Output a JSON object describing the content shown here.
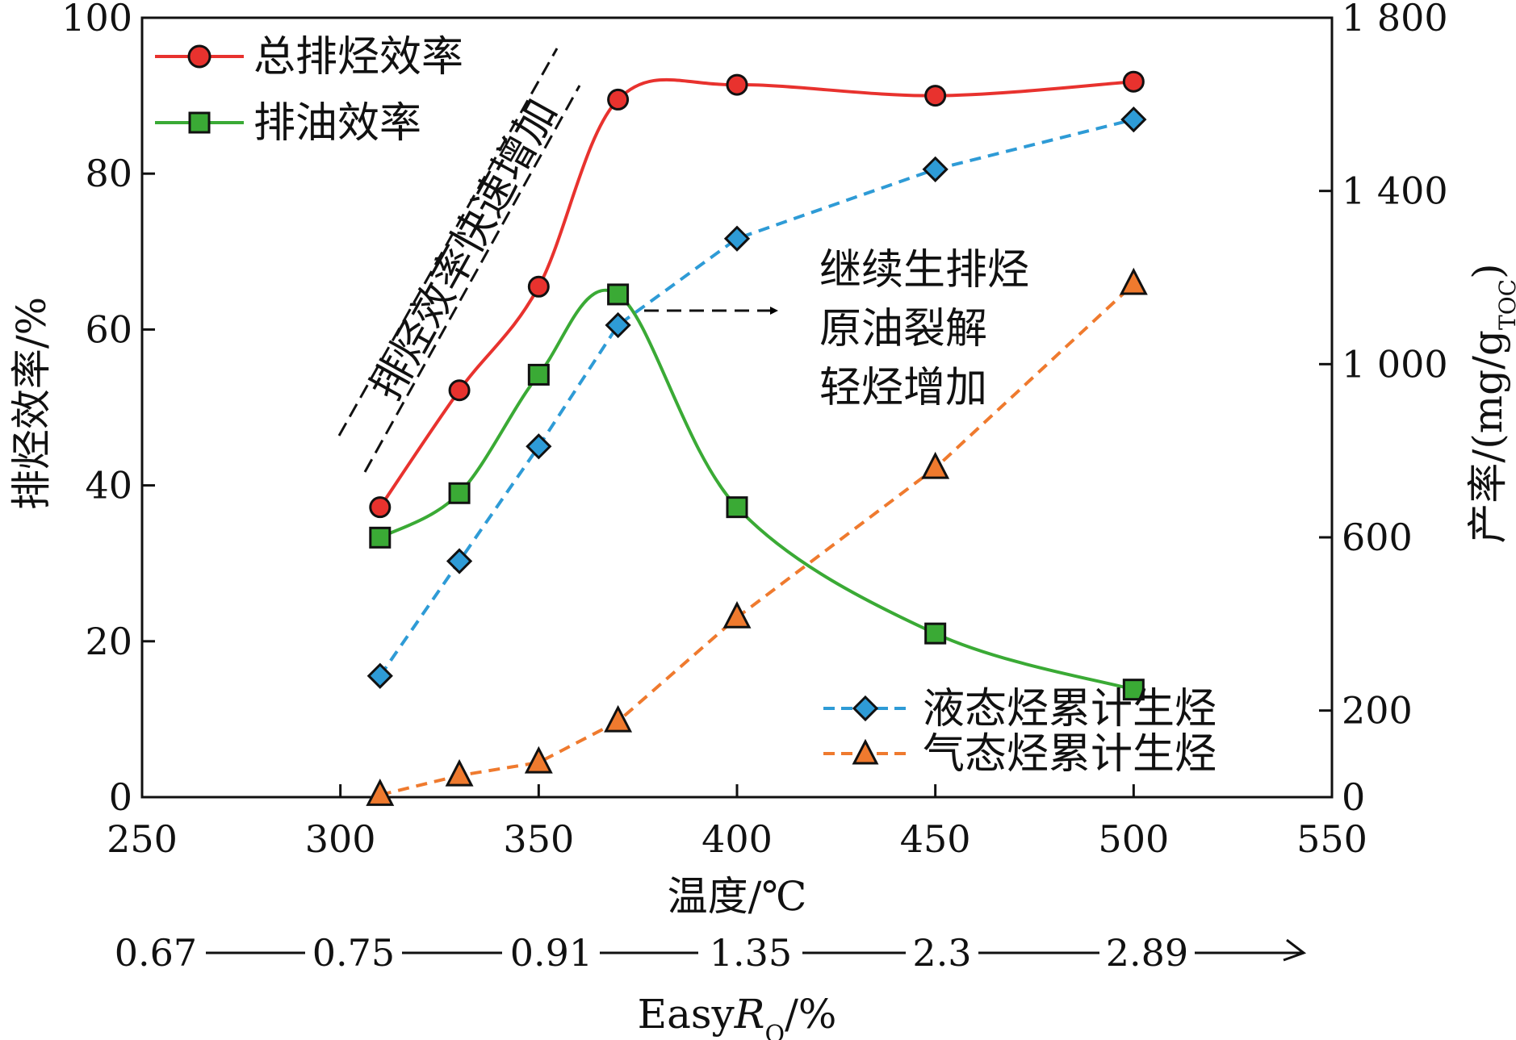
{
  "chart_data": {
    "type": "line",
    "x_axis": {
      "label": "温度/℃",
      "range": [
        250,
        550
      ],
      "ticks": [
        250,
        300,
        350,
        400,
        450,
        500,
        550
      ]
    },
    "y_left": {
      "label": "排烃效率/%",
      "range": [
        0,
        100
      ],
      "ticks": [
        0,
        20,
        40,
        60,
        80,
        100
      ]
    },
    "y_right": {
      "label_main": "产率/(mg/g",
      "label_sub": "TOC",
      "label_close": ")",
      "range": [
        0,
        1800
      ],
      "ticks": [
        0,
        200,
        600,
        1000,
        1400,
        1800
      ],
      "tick_labels": [
        "0",
        "200",
        "600",
        "1 000",
        "1 400",
        "1 800"
      ]
    },
    "secondary_axis": {
      "label_main": "Easy",
      "label_italic": "R",
      "label_sub": "O",
      "label_tail": "/%",
      "values": [
        "0.67",
        "0.75",
        "0.91",
        "1.35",
        "2.3",
        "2.89"
      ]
    },
    "series": [
      {
        "name": "总排烃效率",
        "axis": "left",
        "color": "#e8322e",
        "marker": "circle",
        "line": "solid",
        "points": [
          [
            310,
            37.2
          ],
          [
            330,
            52.2
          ],
          [
            350,
            65.5
          ],
          [
            370,
            89.5
          ],
          [
            400,
            91.4
          ],
          [
            450,
            90.0
          ],
          [
            500,
            91.8
          ]
        ]
      },
      {
        "name": "排油效率",
        "axis": "left",
        "color": "#3aaa35",
        "marker": "square",
        "line": "solid",
        "points": [
          [
            310,
            33.3
          ],
          [
            330,
            39.0
          ],
          [
            350,
            54.2
          ],
          [
            370,
            64.5
          ],
          [
            400,
            37.2
          ],
          [
            450,
            21.0
          ],
          [
            500,
            13.8
          ]
        ]
      },
      {
        "name": "液态烃累计生烃",
        "axis": "right",
        "color": "#2e9bd6",
        "marker": "diamond",
        "line": "dashed",
        "points": [
          [
            310,
            280
          ],
          [
            330,
            545
          ],
          [
            350,
            810
          ],
          [
            370,
            1090
          ],
          [
            400,
            1290
          ],
          [
            450,
            1450
          ],
          [
            500,
            1565
          ]
        ]
      },
      {
        "name": "气态烃累计生烃",
        "axis": "right",
        "color": "#ef7a2e",
        "marker": "triangle",
        "line": "dashed",
        "points": [
          [
            310,
            5
          ],
          [
            330,
            50
          ],
          [
            350,
            80
          ],
          [
            370,
            175
          ],
          [
            400,
            415
          ],
          [
            450,
            760
          ],
          [
            500,
            1185
          ]
        ]
      }
    ],
    "annotations": {
      "rotated": "排烃效率快速增加",
      "right_note": [
        "继续生排烃",
        "原油裂解",
        "轻烃增加"
      ]
    },
    "legend": {
      "top_left": [
        "总排烃效率",
        "排油效率"
      ],
      "bottom_right": [
        "液态烃累计生烃",
        "气态烃累计生烃"
      ]
    }
  }
}
